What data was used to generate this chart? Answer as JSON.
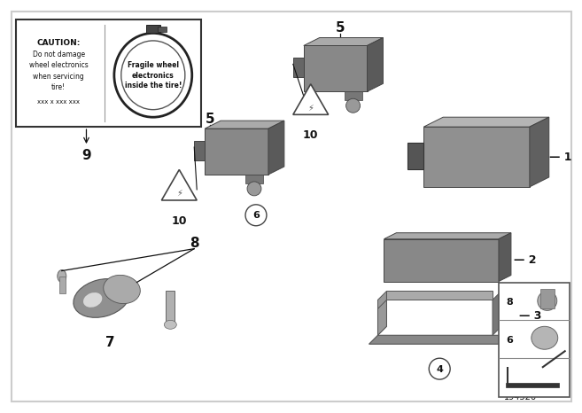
{
  "background_color": "#ffffff",
  "part_number": "194526",
  "gray_main": "#8a8a8a",
  "gray_dark": "#5a5a5a",
  "gray_light": "#b0b0b0",
  "gray_top": "#a0a0a0",
  "text_color": "#111111",
  "border_color": "#999999"
}
